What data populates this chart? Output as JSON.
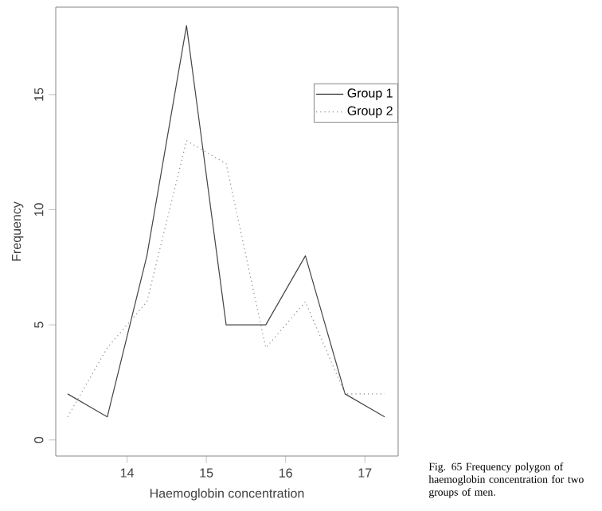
{
  "chart_data": {
    "type": "line",
    "xlabel": "Haemoglobin concentration",
    "ylabel": "Frequency",
    "x": [
      13.25,
      13.75,
      14.25,
      14.75,
      15.25,
      15.75,
      16.25,
      16.75,
      17.25
    ],
    "series": [
      {
        "name": "Group 1",
        "color": "#444444",
        "line_style": "solid",
        "values": [
          2,
          1,
          8,
          18,
          5,
          5,
          8,
          2,
          1
        ]
      },
      {
        "name": "Group 2",
        "color": "#888888",
        "line_style": "dotted",
        "values": [
          1,
          4,
          6,
          13,
          12,
          4,
          6,
          2,
          2
        ]
      }
    ],
    "xlim": [
      13.1,
      17.42
    ],
    "ylim": [
      -0.7,
      18.8
    ],
    "xticks": [
      14,
      15,
      16,
      17
    ],
    "yticks": [
      0,
      5,
      10,
      15
    ],
    "legend": "top right",
    "grid": false,
    "annotations": [
      "Fig. 65  Frequency polygon of haemoglobin concentration for two groups of men."
    ]
  }
}
